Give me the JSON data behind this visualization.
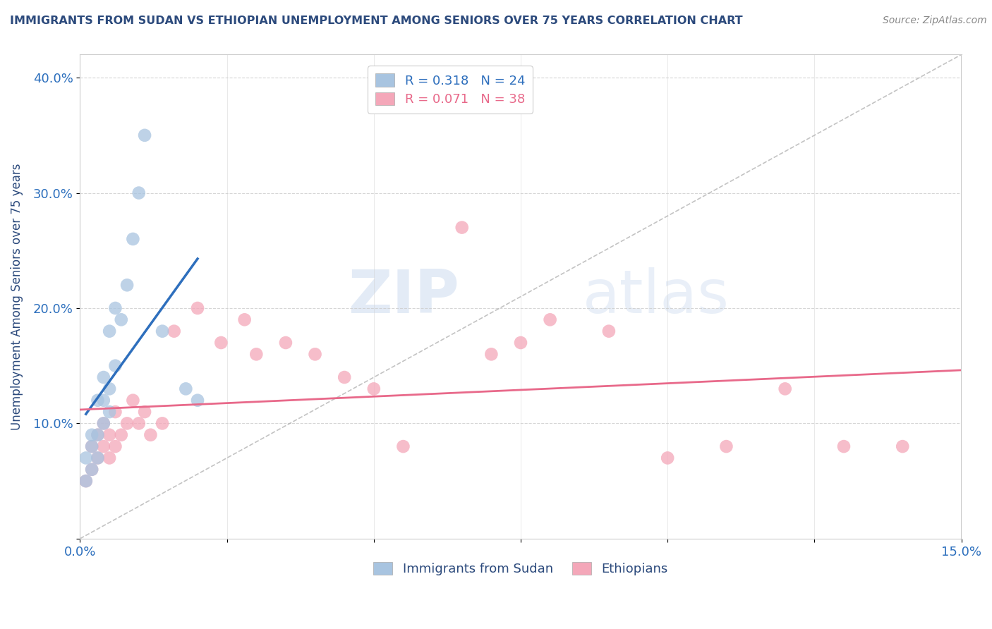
{
  "title": "IMMIGRANTS FROM SUDAN VS ETHIOPIAN UNEMPLOYMENT AMONG SENIORS OVER 75 YEARS CORRELATION CHART",
  "source": "Source: ZipAtlas.com",
  "ylabel": "Unemployment Among Seniors over 75 years",
  "xlim": [
    0.0,
    0.15
  ],
  "ylim": [
    0.0,
    0.42
  ],
  "xticks": [
    0.0,
    0.025,
    0.05,
    0.075,
    0.1,
    0.125,
    0.15
  ],
  "xticklabels": [
    "0.0%",
    "",
    "",
    "",
    "",
    "",
    "15.0%"
  ],
  "yticks": [
    0.0,
    0.1,
    0.2,
    0.3,
    0.4
  ],
  "yticklabels": [
    "",
    "10.0%",
    "20.0%",
    "30.0%",
    "40.0%"
  ],
  "sudan_R": 0.318,
  "sudan_N": 24,
  "ethiopia_R": 0.071,
  "ethiopia_N": 38,
  "sudan_color": "#a8c4e0",
  "ethiopia_color": "#f4a7b9",
  "sudan_line_color": "#2e6fbd",
  "ethiopia_line_color": "#e8698a",
  "background_color": "#ffffff",
  "grid_color": "#cccccc",
  "sudan_x": [
    0.001,
    0.001,
    0.002,
    0.002,
    0.002,
    0.003,
    0.003,
    0.003,
    0.004,
    0.004,
    0.004,
    0.005,
    0.005,
    0.005,
    0.006,
    0.006,
    0.007,
    0.008,
    0.009,
    0.01,
    0.011,
    0.014,
    0.018,
    0.02
  ],
  "sudan_y": [
    0.05,
    0.07,
    0.06,
    0.08,
    0.09,
    0.07,
    0.09,
    0.12,
    0.1,
    0.12,
    0.14,
    0.11,
    0.13,
    0.18,
    0.15,
    0.2,
    0.19,
    0.22,
    0.26,
    0.3,
    0.35,
    0.18,
    0.13,
    0.12
  ],
  "ethiopia_x": [
    0.001,
    0.002,
    0.002,
    0.003,
    0.003,
    0.004,
    0.004,
    0.005,
    0.005,
    0.006,
    0.006,
    0.007,
    0.008,
    0.009,
    0.01,
    0.011,
    0.012,
    0.014,
    0.016,
    0.02,
    0.024,
    0.028,
    0.03,
    0.035,
    0.04,
    0.045,
    0.05,
    0.055,
    0.065,
    0.07,
    0.075,
    0.08,
    0.09,
    0.1,
    0.11,
    0.12,
    0.13,
    0.14
  ],
  "ethiopia_y": [
    0.05,
    0.06,
    0.08,
    0.07,
    0.09,
    0.08,
    0.1,
    0.09,
    0.07,
    0.08,
    0.11,
    0.09,
    0.1,
    0.12,
    0.1,
    0.11,
    0.09,
    0.1,
    0.18,
    0.2,
    0.17,
    0.19,
    0.16,
    0.17,
    0.16,
    0.14,
    0.13,
    0.08,
    0.27,
    0.16,
    0.17,
    0.19,
    0.18,
    0.07,
    0.08,
    0.13,
    0.08,
    0.08
  ],
  "title_color": "#2c4a7c",
  "axis_color": "#2c6fbd",
  "watermark_zip": "ZIP",
  "watermark_atlas": "atlas",
  "legend_box_sudan_color": "#a8c4e0",
  "legend_box_ethiopia_color": "#f4a7b9"
}
